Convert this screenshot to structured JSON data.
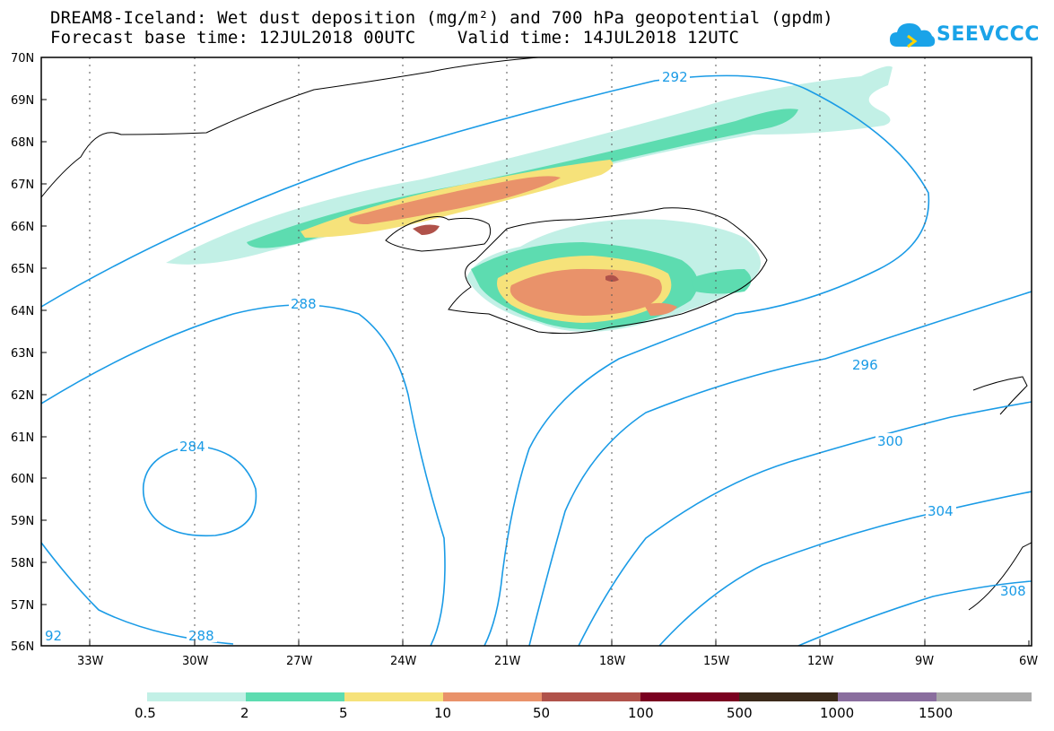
{
  "title": {
    "line1": "DREAM8-Iceland: Wet dust deposition (mg/m²) and 700 hPa geopotential (gpdm)",
    "line2": "Forecast base time: 12JUL2018 00UTC    Valid time: 14JUL2018 12UTC"
  },
  "logo": {
    "text": "SEEVCCC",
    "icon": "cloud-logo-icon",
    "color": "#1aa3e8"
  },
  "map": {
    "lat_labels": [
      "70N",
      "69N",
      "68N",
      "67N",
      "66N",
      "65N",
      "64N",
      "63N",
      "62N",
      "61N",
      "60N",
      "59N",
      "58N",
      "57N",
      "56N"
    ],
    "lon_labels": [
      "33W",
      "30W",
      "27W",
      "24W",
      "21W",
      "18W",
      "15W",
      "12W",
      "9W",
      "6W"
    ],
    "contour_color": "#1a9be6",
    "contour_labels": [
      "292",
      "288",
      "284",
      "288",
      "296",
      "300",
      "304",
      "92",
      "308"
    ]
  },
  "legend": {
    "colors": [
      "#c2f0e6",
      "#5ddcb0",
      "#f6e27a",
      "#e9926a",
      "#b0524a",
      "#7a0020",
      "#3b2a1a",
      "#8a6e9e",
      "#aaaaaa"
    ],
    "labels": [
      "0.5",
      "2",
      "5",
      "10",
      "50",
      "100",
      "500",
      "1000",
      "1500"
    ]
  }
}
